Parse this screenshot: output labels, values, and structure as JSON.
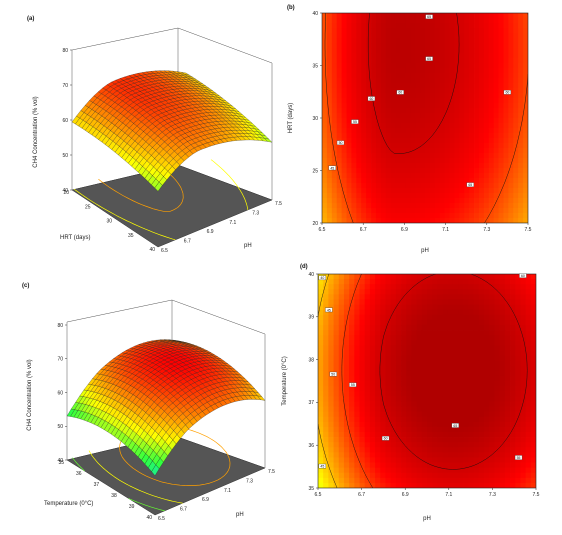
{
  "chart_data": [
    {
      "panel_label": "(a)",
      "type": "surface3d",
      "zlabel": "CH4 Concentration (% vol)",
      "z_ticks": [
        "40",
        "50",
        "60",
        "70",
        "80"
      ],
      "ylabel": "HRT (days)",
      "y_ticks": [
        "20",
        "25",
        "30",
        "35",
        "40"
      ],
      "xlabel": "pH",
      "x_ticks": [
        "6.5",
        "6.7",
        "6.9",
        "7.1",
        "7.3",
        "7.5"
      ],
      "x_range": [
        6.5,
        7.5
      ],
      "y_range": [
        20,
        40
      ],
      "z_range": [
        40,
        80
      ],
      "surface_z_at_corners": {
        "pH6.5_HRT40": 52,
        "pH7.5_HRT40": 58,
        "pH6.5_HRT20": 38,
        "pH7.5_HRT20": 56
      },
      "surface_peak": 67,
      "colormap": [
        "#0050ff",
        "#00d8ff",
        "#30ff40",
        "#ffff00",
        "#ff8000",
        "#ff0000",
        "#b00000"
      ]
    },
    {
      "panel_label": "(b)",
      "type": "contour",
      "xlabel": "pH",
      "ylabel": "HRT (days)",
      "x_ticks": [
        "6.5",
        "6.7",
        "6.9",
        "7.1",
        "7.3",
        "7.5"
      ],
      "y_ticks": [
        "20",
        "25",
        "30",
        "35",
        "40"
      ],
      "x_range": [
        6.5,
        7.5
      ],
      "y_range": [
        20,
        40
      ],
      "contour_labels": [
        "45",
        "50",
        "55",
        "60",
        "60",
        "65",
        "65",
        "65",
        "60",
        "60"
      ],
      "z_range": [
        40,
        67
      ]
    },
    {
      "panel_label": "(c)",
      "type": "surface3d",
      "zlabel": "CH4 Concentration (% vol)",
      "z_ticks": [
        "40",
        "50",
        "60",
        "70",
        "80"
      ],
      "ylabel": "Temperature (0°C)",
      "y_ticks": [
        "35",
        "36",
        "37",
        "38",
        "39",
        "40"
      ],
      "xlabel": "pH",
      "x_ticks": [
        "6.5",
        "6.7",
        "6.9",
        "7.1",
        "7.3",
        "7.5"
      ],
      "x_range": [
        6.5,
        7.5
      ],
      "y_range": [
        35,
        40
      ],
      "z_range": [
        40,
        80
      ],
      "surface_peak": 67,
      "colormap": [
        "#0050ff",
        "#00d8ff",
        "#30ff40",
        "#ffff00",
        "#ff8000",
        "#ff0000",
        "#b00000"
      ]
    },
    {
      "panel_label": "(d)",
      "type": "contour",
      "xlabel": "pH",
      "ylabel": "Temperature (0°C)",
      "x_ticks": [
        "6.5",
        "6.7",
        "6.9",
        "7.1",
        "7.3",
        "7.5"
      ],
      "y_ticks": [
        "35",
        "36",
        "37",
        "38",
        "39",
        "40"
      ],
      "x_range": [
        6.5,
        7.5
      ],
      "y_range": [
        35,
        40
      ],
      "contour_labels": [
        "40",
        "45",
        "50",
        "55",
        "60",
        "65",
        "60",
        "55",
        "45"
      ],
      "z_range": [
        38,
        67
      ]
    }
  ]
}
